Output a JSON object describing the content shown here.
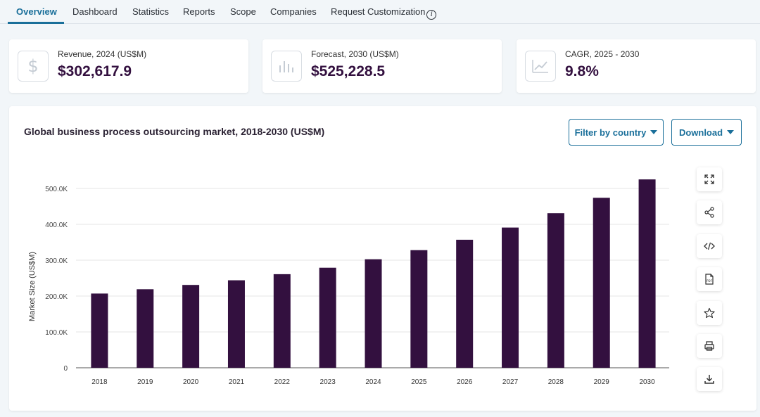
{
  "tabs": [
    {
      "label": "Overview",
      "active": true
    },
    {
      "label": "Dashboard",
      "active": false
    },
    {
      "label": "Statistics",
      "active": false
    },
    {
      "label": "Reports",
      "active": false
    },
    {
      "label": "Scope",
      "active": false
    },
    {
      "label": "Companies",
      "active": false
    },
    {
      "label": "Request Customization",
      "active": false
    }
  ],
  "cards": [
    {
      "label": "Revenue, 2024 (US$M)",
      "value": "$302,617.9",
      "icon": "dollar-icon"
    },
    {
      "label": "Forecast, 2030 (US$M)",
      "value": "$525,228.5",
      "icon": "bar-chart-icon"
    },
    {
      "label": "CAGR, 2025 - 2030",
      "value": "9.8%",
      "icon": "trend-line-icon"
    }
  ],
  "panel": {
    "title": "Global business process outsourcing market, 2018-2030 (US$M)",
    "filter_label": "Filter by country",
    "download_label": "Download"
  },
  "side_tools": [
    "expand-icon",
    "share-icon",
    "embed-code-icon",
    "pdf-icon",
    "star-icon",
    "print-icon",
    "download-icon"
  ],
  "colors": {
    "bar": "#33103f",
    "accent": "#1a6f9a",
    "value": "#33103f"
  },
  "chart_data": {
    "type": "bar",
    "categories": [
      "2018",
      "2019",
      "2020",
      "2021",
      "2022",
      "2023",
      "2024",
      "2025",
      "2026",
      "2027",
      "2028",
      "2029",
      "2030"
    ],
    "values": [
      207000,
      219000,
      231000,
      244000,
      261000,
      279000,
      302617.9,
      328000,
      357000,
      391000,
      431000,
      474000,
      525228.5
    ],
    "ylabel": "Market Size (US$M)",
    "xlabel": "",
    "ylim": [
      0,
      500000
    ],
    "yticks": [
      0,
      100000,
      200000,
      300000,
      400000,
      500000
    ],
    "ytick_labels": [
      "0",
      "100.0K",
      "200.0K",
      "300.0K",
      "400.0K",
      "500.0K"
    ],
    "grid": true,
    "legend": "none"
  }
}
